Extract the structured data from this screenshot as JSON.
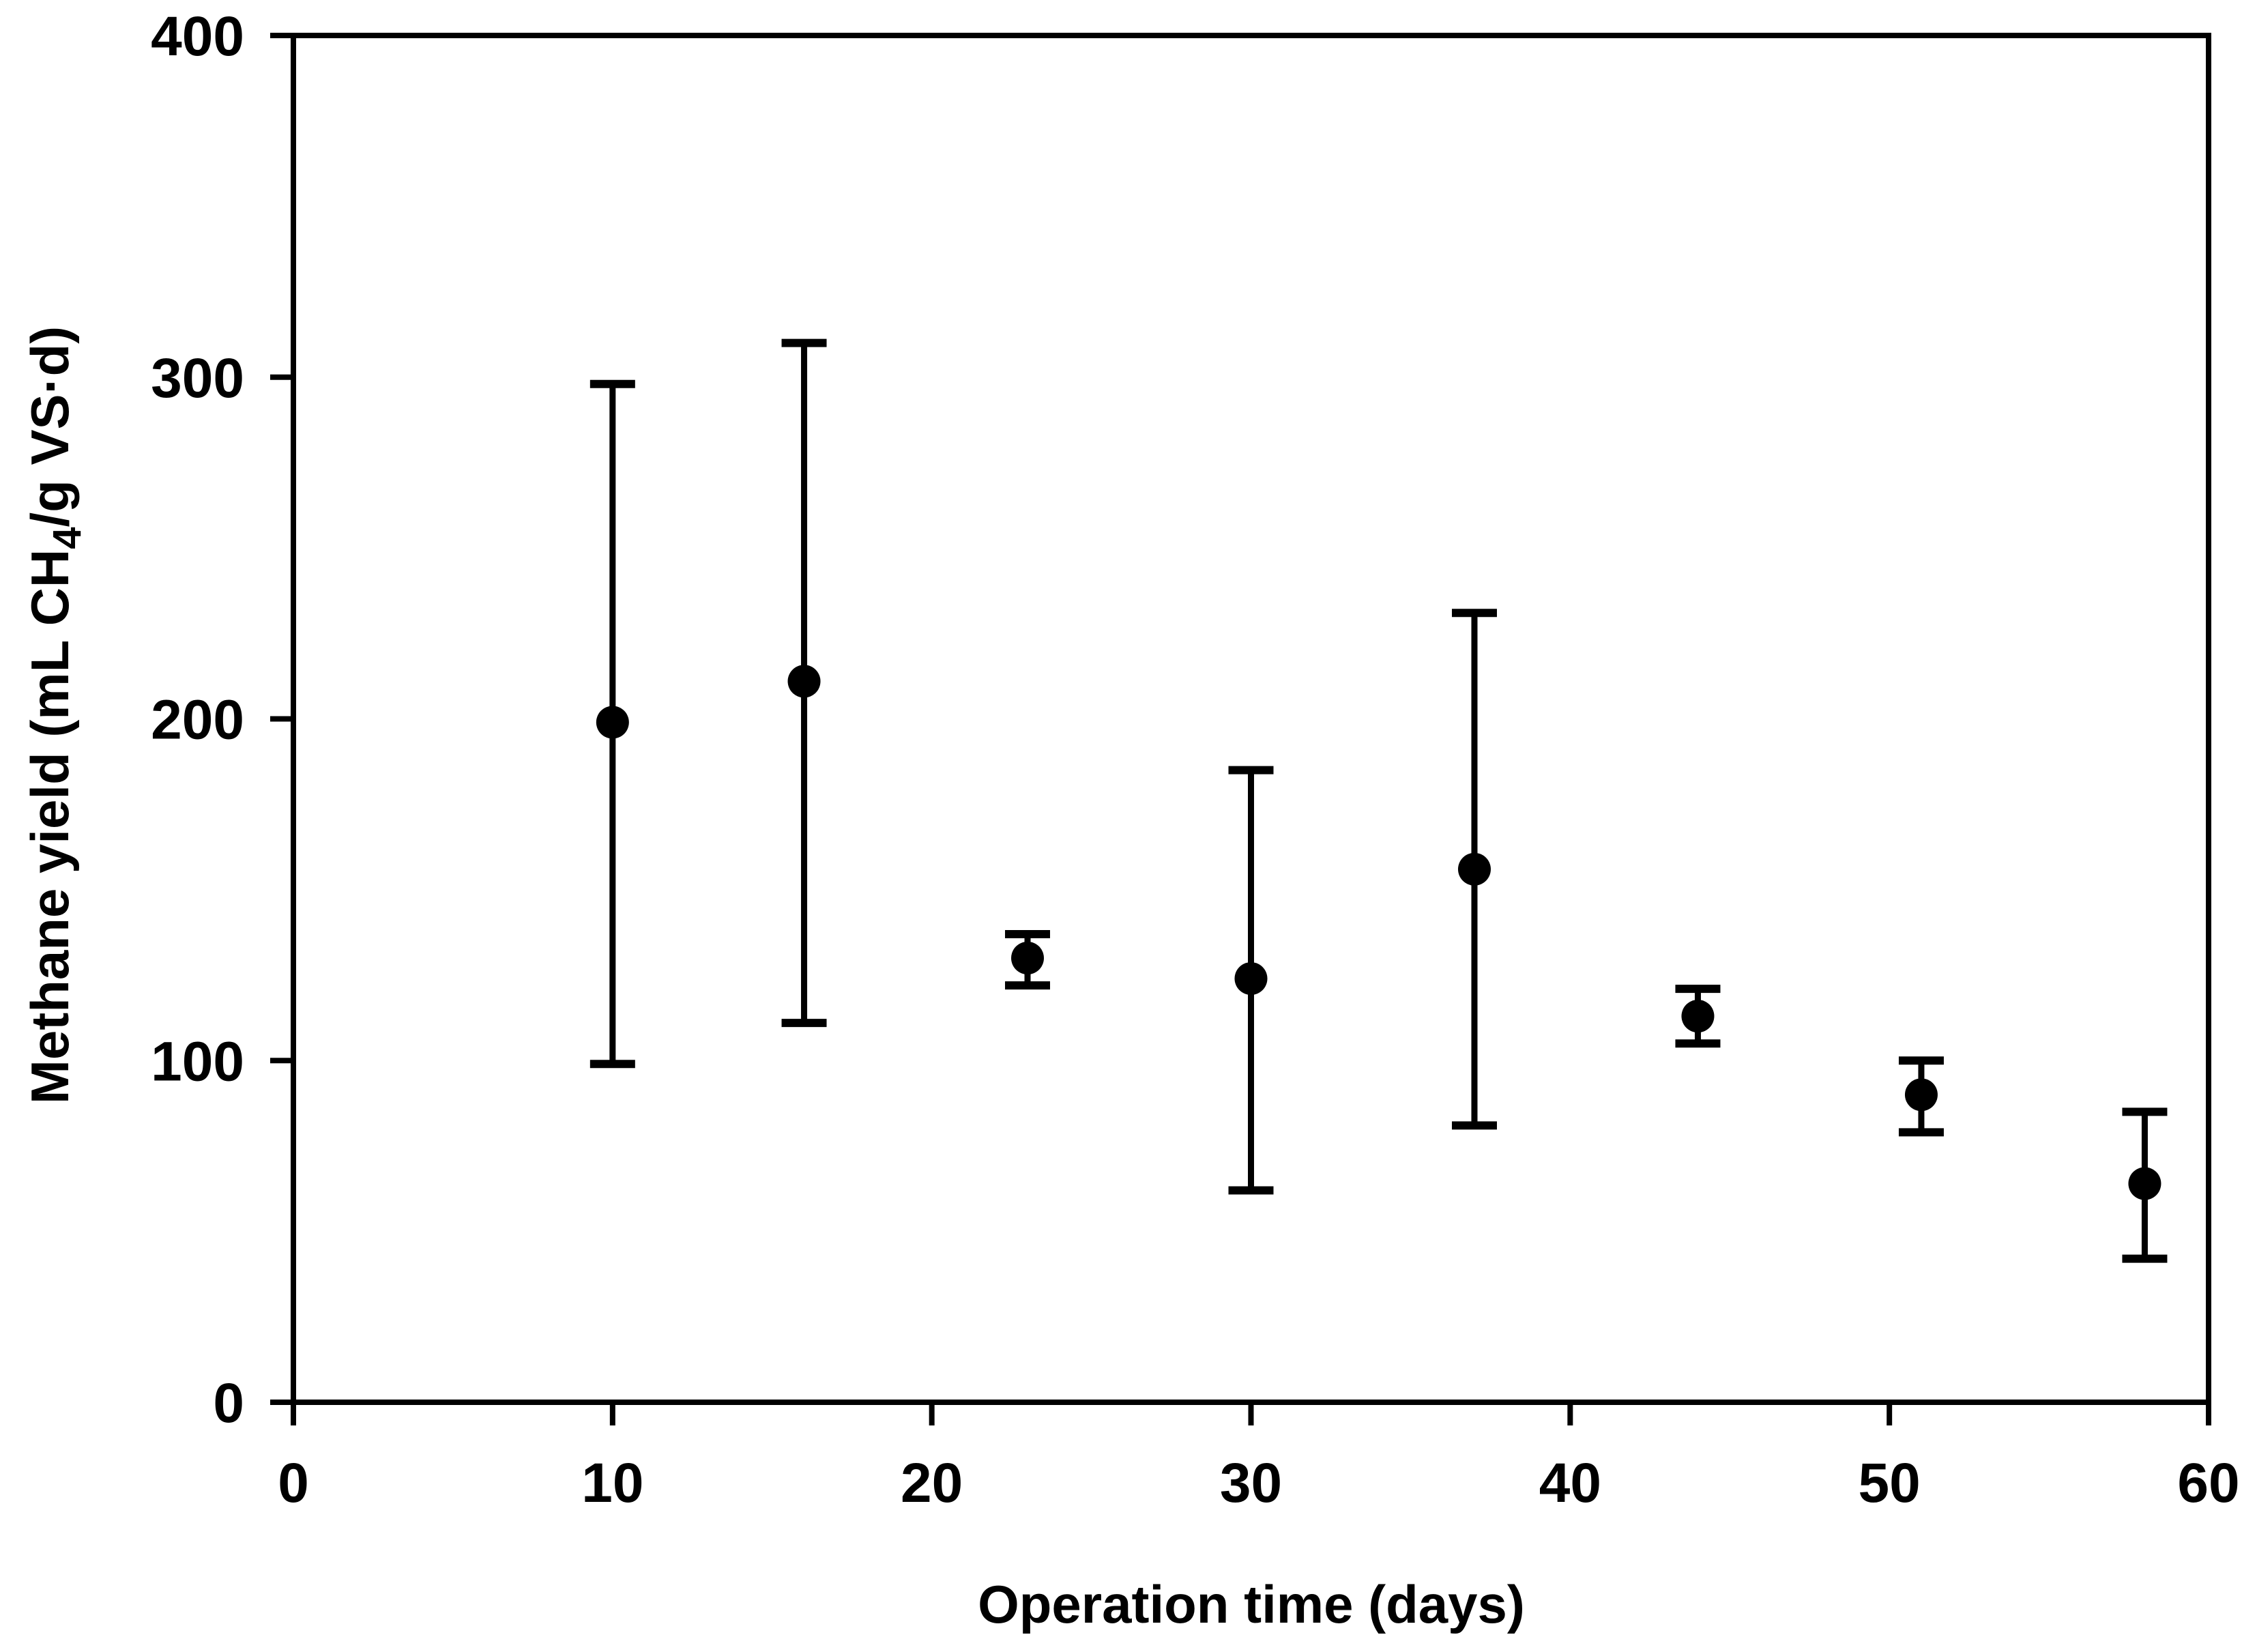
{
  "figure": {
    "background": "#ffffff",
    "ink_color": "#000000"
  },
  "chart_data": {
    "type": "scatter",
    "title": "",
    "xlabel": "Operation time (days)",
    "ylabel": "Methane yield (mL CH4/g VS·d)",
    "ylabel_parts": {
      "prefix": "Methane yield (mL CH",
      "subscript": "4",
      "suffix": "/g VS·d)"
    },
    "xlim": [
      0,
      60
    ],
    "ylim": [
      0,
      400
    ],
    "x_ticks": [
      0,
      10,
      20,
      30,
      40,
      50,
      60
    ],
    "y_ticks": [
      0,
      100,
      200,
      300,
      400
    ],
    "grid": false,
    "legend": "none",
    "marker": "filled-circle",
    "error_bars": "vertical-with-caps",
    "series": [
      {
        "name": "Methane yield",
        "x": [
          10,
          16,
          23,
          30,
          37,
          44,
          51,
          58
        ],
        "y": [
          199,
          211,
          130,
          124,
          156,
          113,
          90,
          64
        ],
        "error_plus": [
          99,
          99,
          7,
          61,
          75,
          8,
          10,
          21
        ],
        "error_minus": [
          100,
          100,
          8,
          62,
          75,
          8,
          11,
          22
        ]
      }
    ]
  }
}
